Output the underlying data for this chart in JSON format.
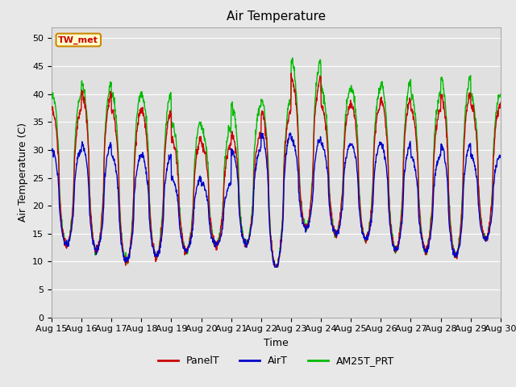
{
  "title": "Air Temperature",
  "xlabel": "Time",
  "ylabel": "Air Temperature (C)",
  "ylim": [
    0,
    52
  ],
  "yticks": [
    0,
    5,
    10,
    15,
    20,
    25,
    30,
    35,
    40,
    45,
    50
  ],
  "x_labels": [
    "Aug 15",
    "Aug 16",
    "Aug 17",
    "Aug 18",
    "Aug 19",
    "Aug 20",
    "Aug 21",
    "Aug 22",
    "Aug 23",
    "Aug 24",
    "Aug 25",
    "Aug 26",
    "Aug 27",
    "Aug 28",
    "Aug 29",
    "Aug 30"
  ],
  "legend_label": "TW_met",
  "legend_entries": [
    "PanelT",
    "AirT",
    "AM25T_PRT"
  ],
  "line_colors": [
    "#cc0000",
    "#0000cc",
    "#00bb00"
  ],
  "fig_bg_color": "#e8e8e8",
  "plot_bg_color": "#e0e0e0",
  "grid_color": "#ffffff",
  "title_fontsize": 11,
  "label_fontsize": 9,
  "tick_fontsize": 8,
  "linewidth": 1.0,
  "figwidth": 6.4,
  "figheight": 4.8,
  "dpi": 100
}
